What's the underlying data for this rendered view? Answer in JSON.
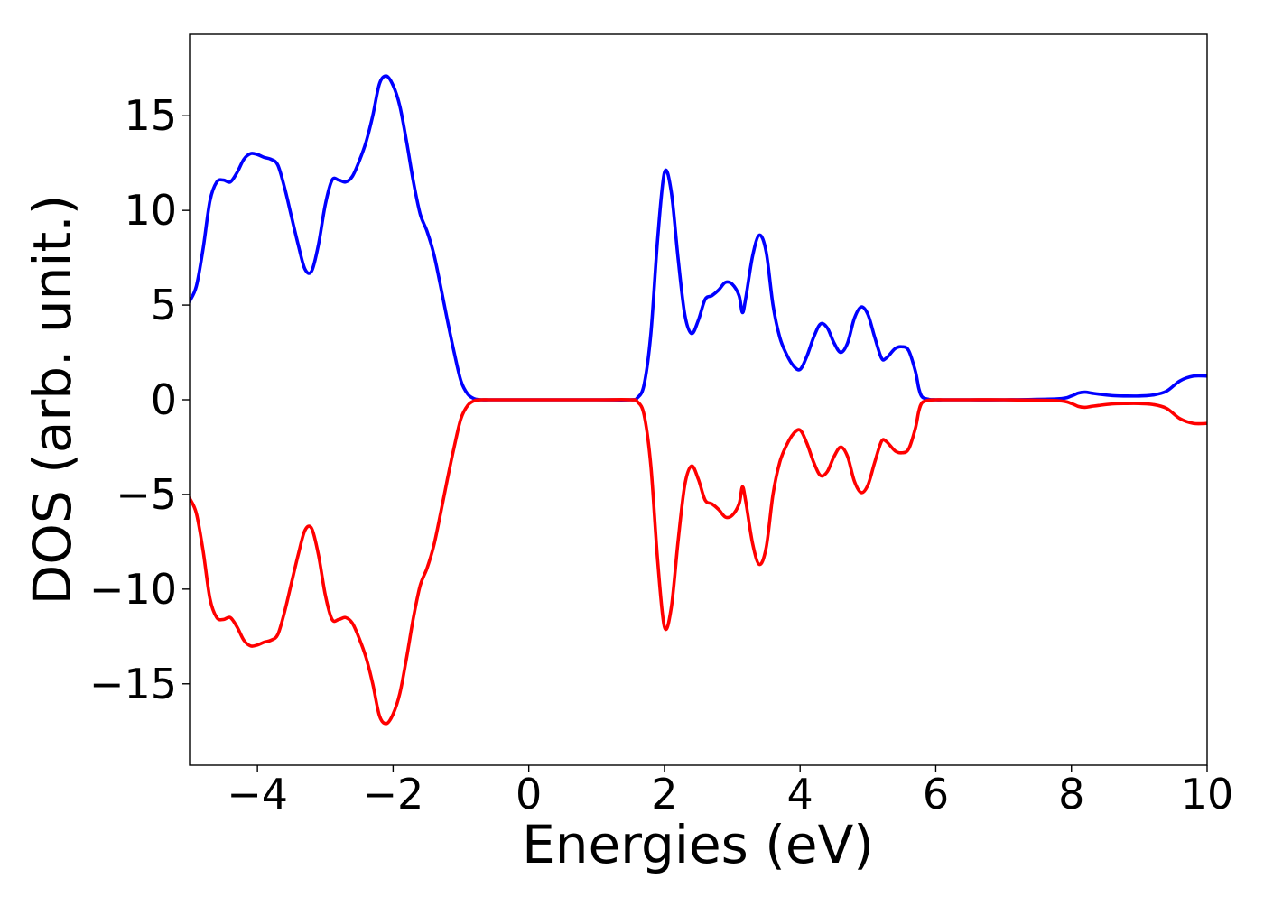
{
  "chart_data": {
    "type": "line",
    "title": "",
    "xlabel": "Energies (eV)",
    "ylabel": "DOS (arb. unit.)",
    "xlim": [
      -5,
      10
    ],
    "ylim": [
      -19.3,
      19.3
    ],
    "grid": false,
    "legend": "none",
    "x_ticks": [
      {
        "value": -4,
        "label": "−4"
      },
      {
        "value": -2,
        "label": "−2"
      },
      {
        "value": 0,
        "label": "0"
      },
      {
        "value": 2,
        "label": "2"
      },
      {
        "value": 4,
        "label": "4"
      },
      {
        "value": 6,
        "label": "6"
      },
      {
        "value": 8,
        "label": "8"
      },
      {
        "value": 10,
        "label": "10"
      }
    ],
    "y_ticks": [
      {
        "value": 15,
        "label": "15"
      },
      {
        "value": 10,
        "label": "10"
      },
      {
        "value": 5,
        "label": "5"
      },
      {
        "value": 0,
        "label": "0"
      },
      {
        "value": -5,
        "label": "−5"
      },
      {
        "value": -10,
        "label": "−10"
      },
      {
        "value": -15,
        "label": "−15"
      }
    ],
    "series": [
      {
        "color": "#0000ff",
        "x": [
          -5.0,
          -4.9,
          -4.8,
          -4.7,
          -4.6,
          -4.5,
          -4.4,
          -4.3,
          -4.2,
          -4.1,
          -4.0,
          -3.9,
          -3.8,
          -3.7,
          -3.6,
          -3.5,
          -3.4,
          -3.3,
          -3.2,
          -3.1,
          -3.0,
          -2.9,
          -2.8,
          -2.7,
          -2.6,
          -2.5,
          -2.4,
          -2.3,
          -2.2,
          -2.1,
          -2.0,
          -1.9,
          -1.8,
          -1.7,
          -1.6,
          -1.5,
          -1.4,
          -1.3,
          -1.2,
          -1.1,
          -1.0,
          -0.9,
          -0.8,
          -0.7,
          -0.6,
          -0.5,
          0.0,
          1.0,
          1.5,
          1.6,
          1.7,
          1.8,
          1.9,
          2.0,
          2.1,
          2.2,
          2.3,
          2.4,
          2.5,
          2.6,
          2.7,
          2.8,
          2.9,
          3.0,
          3.1,
          3.15,
          3.2,
          3.3,
          3.4,
          3.5,
          3.6,
          3.7,
          3.8,
          3.9,
          4.0,
          4.1,
          4.2,
          4.3,
          4.4,
          4.5,
          4.6,
          4.7,
          4.8,
          4.9,
          5.0,
          5.1,
          5.2,
          5.27,
          5.4,
          5.5,
          5.6,
          5.7,
          5.75,
          5.8,
          5.9,
          6.0,
          6.1,
          6.2,
          6.5,
          7.0,
          7.8,
          8.0,
          8.1,
          8.2,
          8.3,
          8.4,
          8.6,
          8.8,
          9.0,
          9.2,
          9.4,
          9.6,
          9.8,
          10.0
        ],
        "y": [
          5.2,
          6.0,
          8.0,
          10.5,
          11.5,
          11.6,
          11.5,
          12.0,
          12.7,
          13.0,
          12.95,
          12.8,
          12.7,
          12.4,
          11.2,
          9.7,
          8.2,
          6.9,
          6.8,
          8.2,
          10.3,
          11.6,
          11.6,
          11.5,
          11.8,
          12.6,
          13.6,
          15.0,
          16.7,
          17.1,
          16.6,
          15.5,
          13.6,
          11.5,
          9.8,
          8.9,
          7.7,
          6.0,
          4.2,
          2.5,
          1.0,
          0.3,
          0.05,
          0.0,
          0.0,
          0.0,
          0.0,
          0.0,
          0.0,
          0.1,
          0.8,
          3.5,
          8.5,
          12.0,
          11.0,
          7.5,
          4.5,
          3.5,
          4.2,
          5.3,
          5.5,
          5.8,
          6.2,
          6.1,
          5.5,
          4.6,
          5.4,
          7.6,
          8.7,
          7.8,
          5.0,
          3.3,
          2.4,
          1.8,
          1.6,
          2.3,
          3.3,
          4.0,
          3.8,
          3.0,
          2.5,
          3.0,
          4.3,
          4.9,
          4.5,
          3.3,
          2.2,
          2.2,
          2.7,
          2.8,
          2.6,
          1.5,
          0.6,
          0.15,
          0.02,
          0.0,
          0.0,
          0.0,
          0.0,
          0.0,
          0.05,
          0.2,
          0.35,
          0.4,
          0.35,
          0.3,
          0.22,
          0.2,
          0.2,
          0.25,
          0.45,
          1.0,
          1.25,
          1.25
        ]
      },
      {
        "color": "#ff0000",
        "x": [
          -5.0,
          -4.9,
          -4.8,
          -4.7,
          -4.6,
          -4.5,
          -4.4,
          -4.3,
          -4.2,
          -4.1,
          -4.0,
          -3.9,
          -3.8,
          -3.7,
          -3.6,
          -3.5,
          -3.4,
          -3.3,
          -3.2,
          -3.1,
          -3.0,
          -2.9,
          -2.8,
          -2.7,
          -2.6,
          -2.5,
          -2.4,
          -2.3,
          -2.2,
          -2.1,
          -2.0,
          -1.9,
          -1.8,
          -1.7,
          -1.6,
          -1.5,
          -1.4,
          -1.3,
          -1.2,
          -1.1,
          -1.0,
          -0.9,
          -0.8,
          -0.7,
          -0.6,
          -0.5,
          0.0,
          1.0,
          1.5,
          1.6,
          1.7,
          1.8,
          1.9,
          2.0,
          2.1,
          2.2,
          2.3,
          2.4,
          2.5,
          2.6,
          2.7,
          2.8,
          2.9,
          3.0,
          3.1,
          3.15,
          3.2,
          3.3,
          3.4,
          3.5,
          3.6,
          3.7,
          3.8,
          3.9,
          4.0,
          4.1,
          4.2,
          4.3,
          4.4,
          4.5,
          4.6,
          4.7,
          4.8,
          4.9,
          5.0,
          5.1,
          5.2,
          5.27,
          5.4,
          5.5,
          5.6,
          5.7,
          5.75,
          5.8,
          5.9,
          6.0,
          6.1,
          6.2,
          6.5,
          7.0,
          7.8,
          8.0,
          8.1,
          8.2,
          8.3,
          8.4,
          8.6,
          8.8,
          9.0,
          9.2,
          9.4,
          9.6,
          9.8,
          10.0
        ],
        "y": [
          -5.2,
          -6.0,
          -8.0,
          -10.5,
          -11.5,
          -11.6,
          -11.5,
          -12.0,
          -12.7,
          -13.0,
          -12.95,
          -12.8,
          -12.7,
          -12.4,
          -11.2,
          -9.7,
          -8.2,
          -6.9,
          -6.8,
          -8.2,
          -10.3,
          -11.6,
          -11.6,
          -11.5,
          -11.8,
          -12.6,
          -13.6,
          -15.0,
          -16.7,
          -17.1,
          -16.6,
          -15.5,
          -13.6,
          -11.5,
          -9.8,
          -8.9,
          -7.7,
          -6.0,
          -4.2,
          -2.5,
          -1.0,
          -0.3,
          -0.05,
          0.0,
          0.0,
          0.0,
          0.0,
          0.0,
          0.0,
          -0.1,
          -0.8,
          -3.5,
          -8.5,
          -12.0,
          -11.0,
          -7.5,
          -4.5,
          -3.5,
          -4.2,
          -5.3,
          -5.5,
          -5.8,
          -6.2,
          -6.1,
          -5.5,
          -4.6,
          -5.4,
          -7.6,
          -8.7,
          -7.8,
          -5.0,
          -3.3,
          -2.4,
          -1.8,
          -1.6,
          -2.3,
          -3.3,
          -4.0,
          -3.8,
          -3.0,
          -2.5,
          -3.0,
          -4.3,
          -4.9,
          -4.5,
          -3.3,
          -2.2,
          -2.2,
          -2.7,
          -2.8,
          -2.6,
          -1.5,
          -0.6,
          -0.15,
          -0.02,
          0.0,
          0.0,
          0.0,
          0.0,
          0.0,
          -0.05,
          -0.2,
          -0.35,
          -0.4,
          -0.35,
          -0.3,
          -0.22,
          -0.2,
          -0.2,
          -0.25,
          -0.45,
          -1.0,
          -1.25,
          -1.25
        ]
      }
    ]
  }
}
